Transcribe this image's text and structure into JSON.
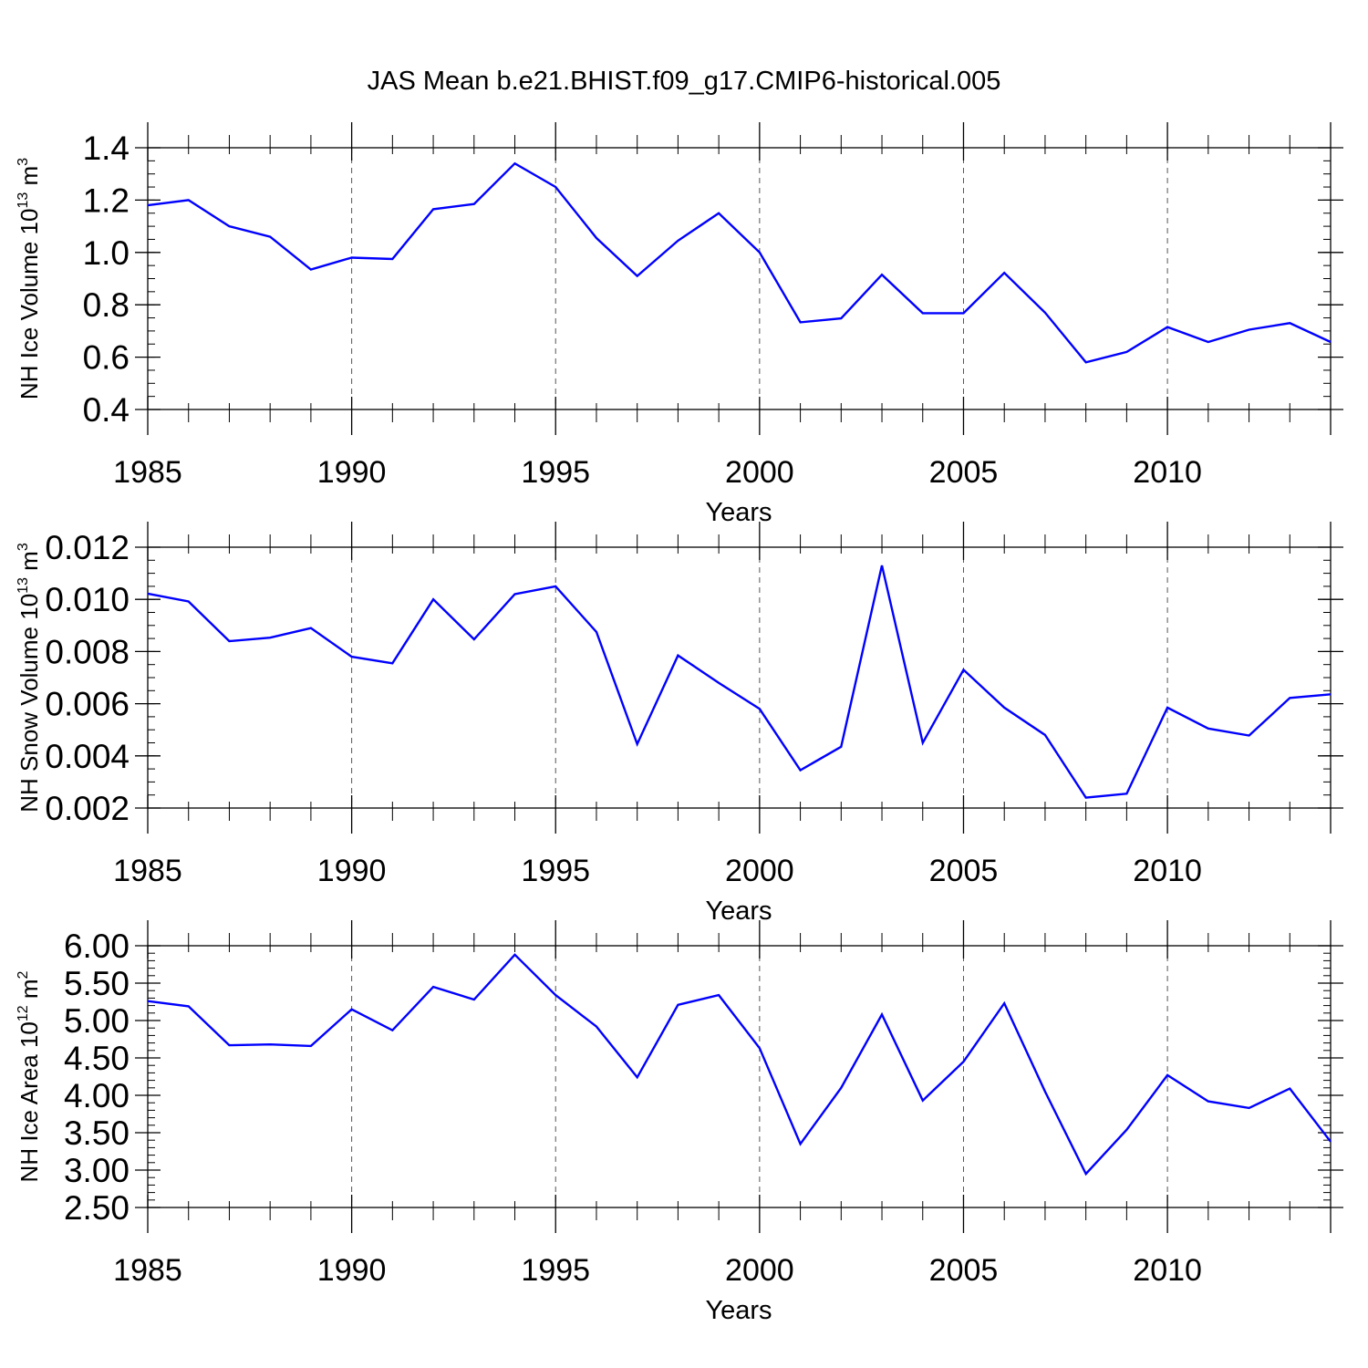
{
  "figure": {
    "title": "JAS Mean b.e21.BHIST.f09_g17.CMIP6-historical.005",
    "line_color": "#0000ff"
  },
  "chart_data": [
    {
      "type": "line",
      "xlabel": "Years",
      "ylabel": "NH Ice Volume 10",
      "ylabel_exp": "13",
      "ylabel_unit": " m",
      "ylabel_unit_exp": "3",
      "xlim": [
        1985,
        2014
      ],
      "ylim": [
        0.4,
        1.4
      ],
      "y_ticks": [
        "0.4",
        "0.6",
        "0.8",
        "1.0",
        "1.2",
        "1.4"
      ],
      "y_minor_step": 0.05,
      "x_ticks": [
        "1985",
        "1990",
        "1995",
        "2000",
        "2005",
        "2010"
      ],
      "grid": "dashed vertical lines at labeled years",
      "x": [
        1985,
        1986,
        1987,
        1988,
        1989,
        1990,
        1991,
        1992,
        1993,
        1994,
        1995,
        1996,
        1997,
        1998,
        1999,
        2000,
        2001,
        2002,
        2003,
        2004,
        2005,
        2006,
        2007,
        2008,
        2009,
        2010,
        2011,
        2012,
        2013,
        2014
      ],
      "series": [
        {
          "values": [
            1.18,
            1.2,
            1.1,
            1.06,
            0.935,
            0.98,
            0.975,
            1.165,
            1.185,
            1.34,
            1.25,
            1.055,
            0.91,
            1.045,
            1.15,
            1.0,
            0.733,
            0.748,
            0.915,
            0.768,
            0.768,
            0.922,
            0.77,
            0.58,
            0.62,
            0.715,
            0.658,
            0.705,
            0.73,
            0.658
          ]
        }
      ]
    },
    {
      "type": "line",
      "xlabel": "Years",
      "ylabel": "NH Snow Volume 10",
      "ylabel_exp": "13",
      "ylabel_unit": " m",
      "ylabel_unit_exp": "3",
      "xlim": [
        1985,
        2014
      ],
      "ylim": [
        0.002,
        0.012
      ],
      "y_ticks": [
        "0.002",
        "0.004",
        "0.006",
        "0.008",
        "0.010",
        "0.012"
      ],
      "y_minor_step": 0.0005,
      "x_ticks": [
        "1985",
        "1990",
        "1995",
        "2000",
        "2005",
        "2010"
      ],
      "grid": "dashed vertical lines at labeled years",
      "x": [
        1985,
        1986,
        1987,
        1988,
        1989,
        1990,
        1991,
        1992,
        1993,
        1994,
        1995,
        1996,
        1997,
        1998,
        1999,
        2000,
        2001,
        2002,
        2003,
        2004,
        2005,
        2006,
        2007,
        2008,
        2009,
        2010,
        2011,
        2012,
        2013,
        2014
      ],
      "series": [
        {
          "values": [
            0.01022,
            0.00992,
            0.0084,
            0.00853,
            0.0089,
            0.0078,
            0.00755,
            0.01,
            0.00847,
            0.0102,
            0.0105,
            0.00875,
            0.00445,
            0.00785,
            0.0068,
            0.0058,
            0.00345,
            0.00435,
            0.0113,
            0.0045,
            0.0073,
            0.00585,
            0.0048,
            0.0024,
            0.00255,
            0.00585,
            0.00505,
            0.00478,
            0.00622,
            0.00636
          ]
        }
      ]
    },
    {
      "type": "line",
      "xlabel": "Years",
      "ylabel": "NH Ice Area 10",
      "ylabel_exp": "12",
      "ylabel_unit": " m",
      "ylabel_unit_exp": "2",
      "xlim": [
        1985,
        2014
      ],
      "ylim": [
        2.5,
        6.0
      ],
      "y_ticks": [
        "2.50",
        "3.00",
        "3.50",
        "4.00",
        "4.50",
        "5.00",
        "5.50",
        "6.00"
      ],
      "y_minor_step": 0.1,
      "x_ticks": [
        "1985",
        "1990",
        "1995",
        "2000",
        "2005",
        "2010"
      ],
      "grid": "dashed vertical lines at labeled years",
      "x": [
        1985,
        1986,
        1987,
        1988,
        1989,
        1990,
        1991,
        1992,
        1993,
        1994,
        1995,
        1996,
        1997,
        1998,
        1999,
        2000,
        2001,
        2002,
        2003,
        2004,
        2005,
        2006,
        2007,
        2008,
        2009,
        2010,
        2011,
        2012,
        2013,
        2014
      ],
      "series": [
        {
          "values": [
            5.26,
            5.19,
            4.67,
            4.68,
            4.66,
            5.15,
            4.87,
            5.45,
            5.28,
            5.88,
            5.34,
            4.92,
            4.24,
            5.21,
            5.34,
            4.63,
            3.35,
            4.1,
            5.08,
            3.93,
            4.45,
            5.23,
            4.05,
            2.95,
            3.54,
            4.27,
            3.92,
            3.83,
            4.09,
            3.38
          ]
        }
      ]
    }
  ]
}
